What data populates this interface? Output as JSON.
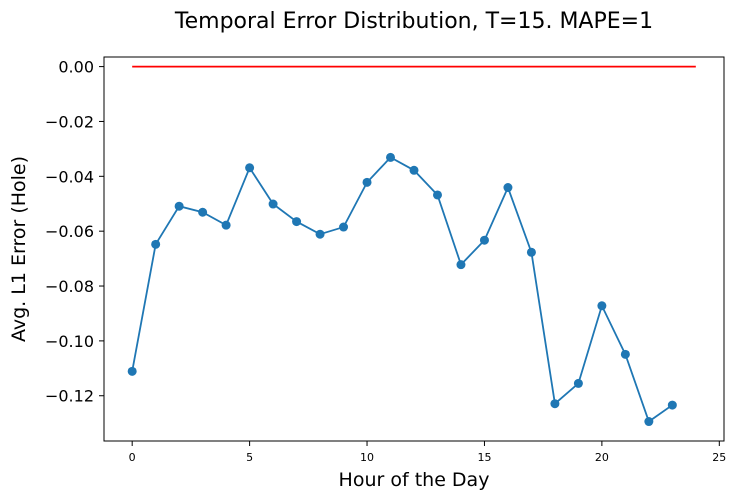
{
  "chart_data": {
    "type": "line",
    "title": "Temporal Error Distribution, T=15. MAPE=1",
    "xlabel": "Hour of the Day",
    "ylabel": "Avg. L1 Error (Hole)",
    "xlim": [
      -1.2,
      25.2
    ],
    "ylim": [
      -0.1365,
      0.0035
    ],
    "xticks": [
      0,
      5,
      10,
      15,
      20,
      25
    ],
    "xtick_labels": [
      "0",
      "5",
      "10",
      "15",
      "20",
      "25"
    ],
    "yticks": [
      0.0,
      -0.02,
      -0.04,
      -0.06,
      -0.08,
      -0.1,
      -0.12
    ],
    "ytick_labels": [
      "0.00",
      "−0.02",
      "−0.04",
      "−0.06",
      "−0.08",
      "−0.10",
      "−0.12"
    ],
    "grid": false,
    "legend": "none",
    "series": [
      {
        "color": "#1f77b4",
        "marker": "circle",
        "x": [
          0,
          1,
          2,
          3,
          4,
          5,
          6,
          7,
          8,
          9,
          10,
          11,
          12,
          13,
          14,
          15,
          16,
          17,
          18,
          19,
          20,
          21,
          22,
          23
        ],
        "y": [
          -0.1111,
          -0.0648,
          -0.0509,
          -0.0531,
          -0.0578,
          -0.0369,
          -0.0501,
          -0.0565,
          -0.0611,
          -0.0585,
          -0.0422,
          -0.0331,
          -0.0378,
          -0.0468,
          -0.0722,
          -0.0633,
          -0.0441,
          -0.0677,
          -0.1229,
          -0.1155,
          -0.0872,
          -0.1049,
          -0.1294,
          -0.1234
        ]
      },
      {
        "color": "#ff0000",
        "marker": "none",
        "x": [
          0,
          24
        ],
        "y": [
          0.0,
          0.0
        ]
      }
    ]
  }
}
